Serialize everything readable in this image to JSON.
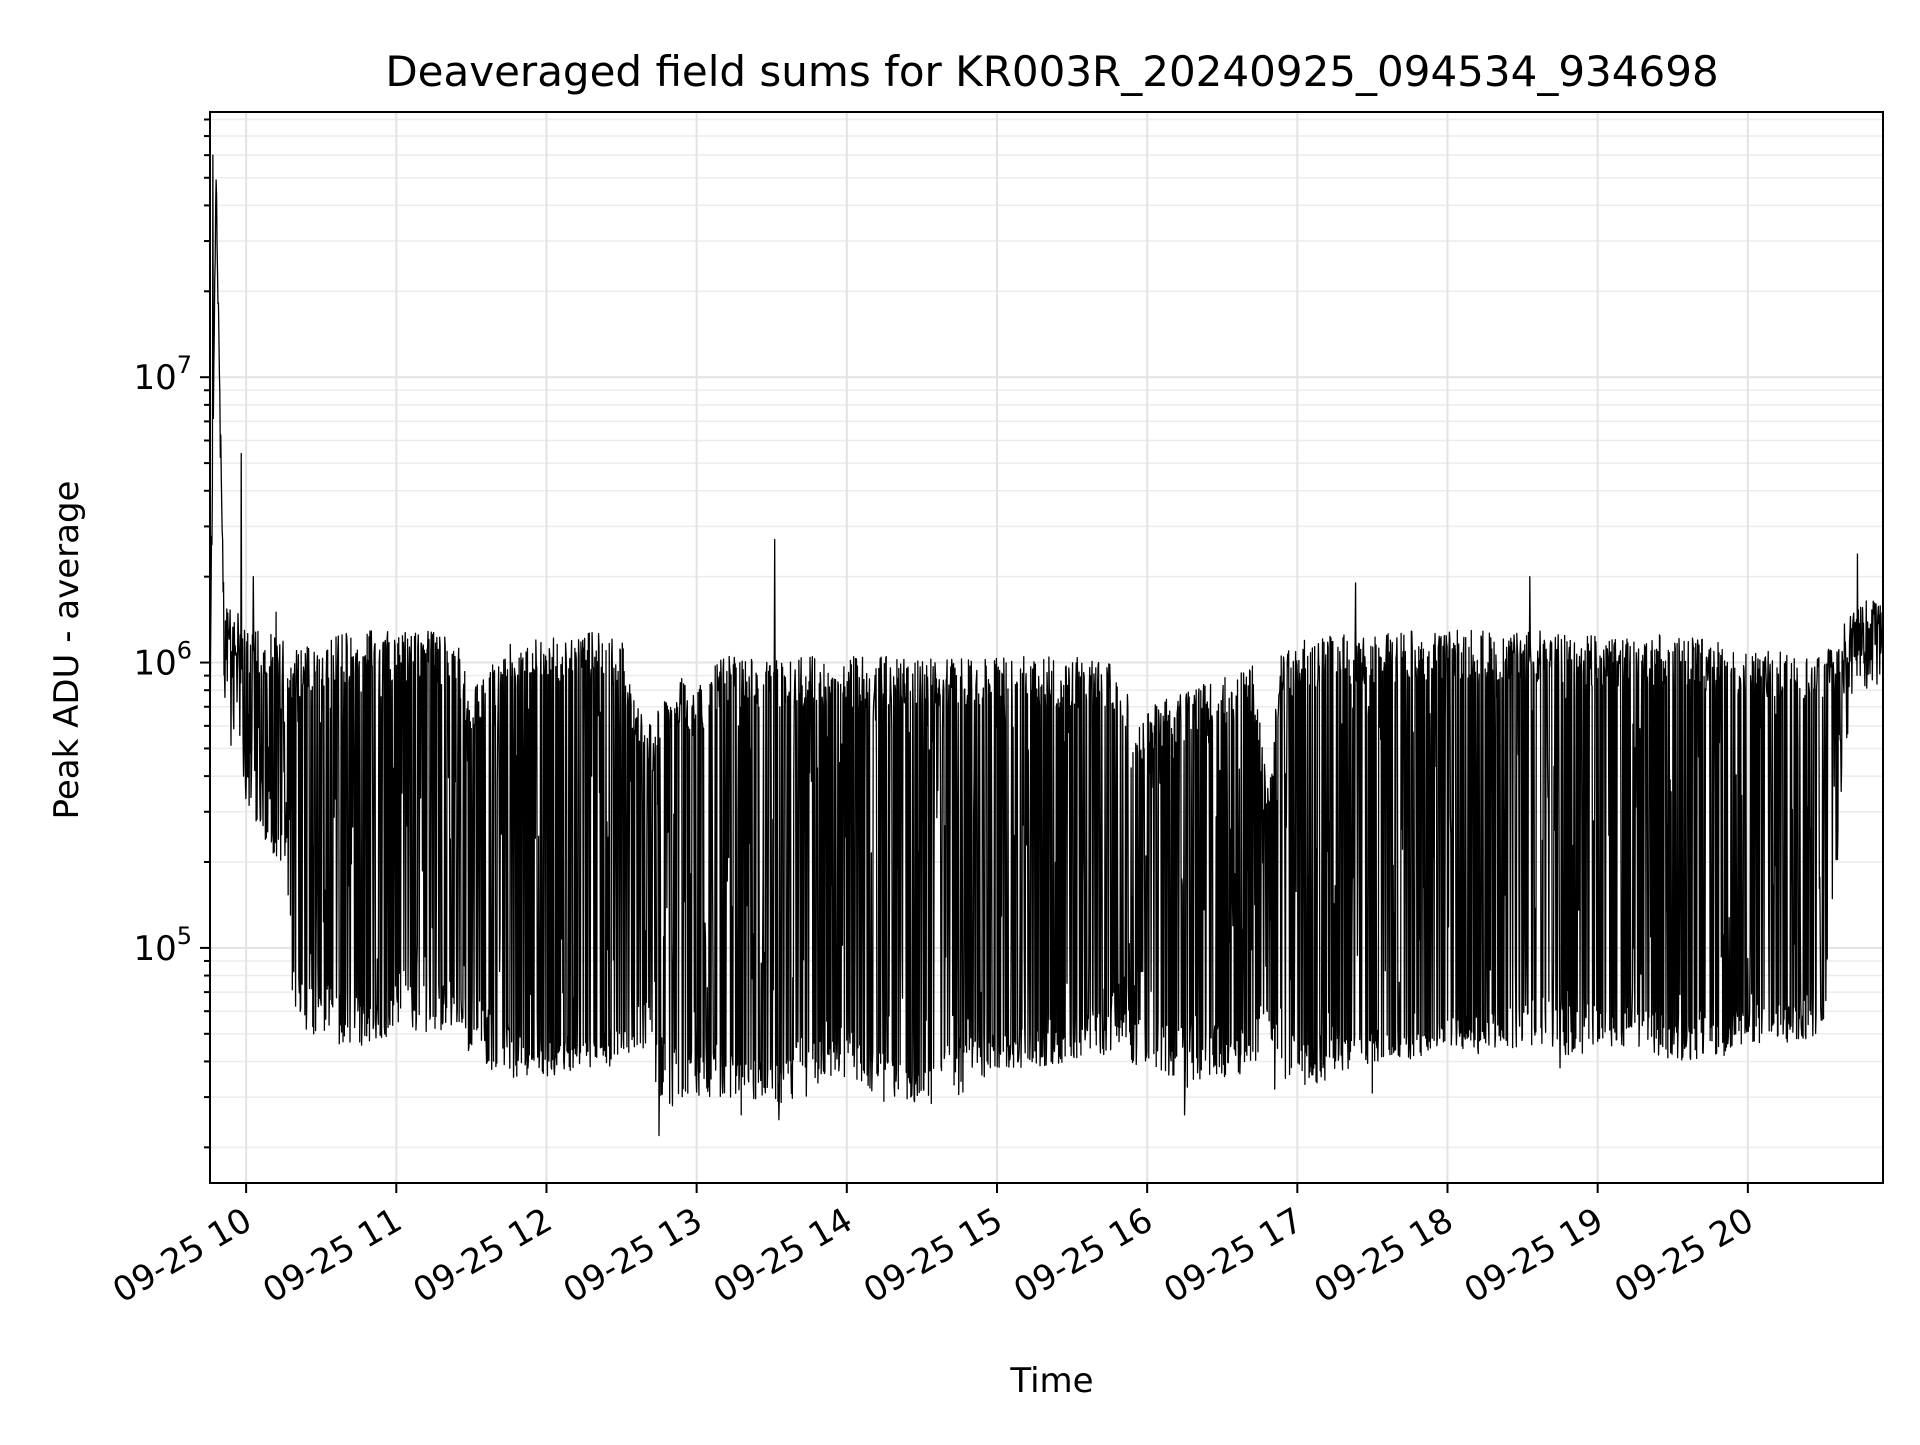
{
  "chart_data": {
    "type": "line",
    "title": "Deaveraged field sums for KR003R_20240925_094534_934698",
    "xlabel": "Time",
    "ylabel": "Peak ADU - average",
    "yscale": "log",
    "xlim": [
      "2024-09-25 09:45:34",
      "2024-09-25 20:54:00"
    ],
    "ylim": [
      15000,
      85000000
    ],
    "grid": true,
    "x_ticks": [
      "09-25 10",
      "09-25 11",
      "09-25 12",
      "09-25 13",
      "09-25 14",
      "09-25 15",
      "09-25 16",
      "09-25 17",
      "09-25 18",
      "09-25 19",
      "09-25 20"
    ],
    "y_ticks": [
      {
        "value": 100000,
        "base": "10",
        "exp": "5"
      },
      {
        "value": 1000000,
        "base": "10",
        "exp": "6"
      },
      {
        "value": 10000000,
        "base": "10",
        "exp": "7"
      }
    ],
    "series": [
      {
        "color": "#000000",
        "envelope_hours": [
          9.76,
          9.8,
          9.85,
          9.9,
          9.95,
          10.0,
          10.1,
          10.25,
          10.3,
          10.5,
          10.75,
          11.0,
          11.25,
          11.4,
          11.5,
          11.75,
          12.0,
          12.25,
          12.5,
          12.6,
          12.7,
          12.75,
          12.9,
          13.0,
          13.1,
          13.15,
          13.2,
          13.5,
          13.75,
          14.0,
          14.25,
          14.5,
          14.75,
          15.0,
          15.25,
          15.5,
          15.75,
          15.85,
          15.9,
          16.0,
          16.25,
          16.5,
          16.7,
          16.8,
          16.9,
          17.0,
          17.25,
          17.5,
          17.75,
          18.0,
          18.25,
          18.5,
          18.75,
          18.8,
          19.0,
          19.25,
          19.5,
          19.75,
          20.0,
          20.25,
          20.5,
          20.6,
          20.65,
          20.7,
          20.8,
          20.9
        ],
        "envelope_low": [
          600000,
          50000000,
          1500000,
          800000,
          900000,
          500000,
          400000,
          250000,
          80000,
          70000,
          65000,
          70000,
          70000,
          80000,
          65000,
          50000,
          45000,
          48000,
          50000,
          60000,
          70000,
          45000,
          40000,
          40000,
          40000,
          45000,
          40000,
          40000,
          45000,
          50000,
          40000,
          35000,
          45000,
          50000,
          50000,
          55000,
          60000,
          80000,
          55000,
          55000,
          50000,
          50000,
          50000,
          75000,
          50000,
          45000,
          50000,
          50000,
          50000,
          55000,
          55000,
          60000,
          70000,
          60000,
          60000,
          60000,
          55000,
          55000,
          60000,
          60000,
          65000,
          400000,
          800000,
          1000000,
          1100000,
          1000000
        ],
        "envelope_high": [
          1200000,
          55000000,
          2000000,
          1500000,
          1500000,
          1300000,
          1300000,
          1200000,
          1100000,
          1200000,
          1300000,
          1300000,
          1300000,
          1200000,
          800000,
          1200000,
          1200000,
          1300000,
          1250000,
          700000,
          600000,
          800000,
          900000,
          800000,
          1000000,
          1050000,
          1050000,
          1050000,
          1050000,
          1050000,
          1050000,
          1050000,
          1050000,
          1050000,
          1050000,
          1050000,
          1050000,
          900000,
          600000,
          700000,
          800000,
          900000,
          1000000,
          400000,
          1200000,
          1200000,
          1250000,
          1250000,
          1300000,
          1300000,
          1300000,
          1300000,
          1300000,
          1250000,
          1250000,
          1250000,
          1250000,
          1200000,
          1100000,
          1100000,
          1100000,
          1200000,
          1400000,
          1500000,
          1700000,
          1600000
        ],
        "trough_floor": [
          350000,
          50000000,
          800000,
          500000,
          500000,
          300000,
          250000,
          180000,
          60000,
          45000,
          45000,
          50000,
          50000,
          50000,
          40000,
          35000,
          35000,
          38000,
          38000,
          40000,
          45000,
          25000,
          30000,
          30000,
          30000,
          30000,
          30000,
          28000,
          30000,
          35000,
          30000,
          28000,
          30000,
          38000,
          38000,
          40000,
          42000,
          50000,
          38000,
          40000,
          32000,
          35000,
          35000,
          50000,
          35000,
          32000,
          35000,
          40000,
          40000,
          45000,
          42000,
          45000,
          45000,
          40000,
          45000,
          45000,
          40000,
          40000,
          45000,
          45000,
          50000,
          200000,
          500000,
          700000,
          800000,
          800000
        ],
        "spikes": [
          {
            "t": 9.78,
            "y": 60000000
          },
          {
            "t": 9.97,
            "y": 5400000
          },
          {
            "t": 10.05,
            "y": 2000000
          },
          {
            "t": 10.2,
            "y": 1500000
          },
          {
            "t": 13.52,
            "y": 2700000
          },
          {
            "t": 17.39,
            "y": 1900000
          },
          {
            "t": 18.55,
            "y": 2000000
          },
          {
            "t": 20.73,
            "y": 2400000
          }
        ],
        "dips": [
          {
            "t": 12.75,
            "y": 22000
          },
          {
            "t": 13.3,
            "y": 26000
          },
          {
            "t": 13.55,
            "y": 25000
          },
          {
            "t": 14.25,
            "y": 29000
          },
          {
            "t": 16.25,
            "y": 26000
          },
          {
            "t": 16.85,
            "y": 32000
          },
          {
            "t": 17.5,
            "y": 31000
          },
          {
            "t": 18.75,
            "y": 38000
          }
        ]
      }
    ]
  }
}
